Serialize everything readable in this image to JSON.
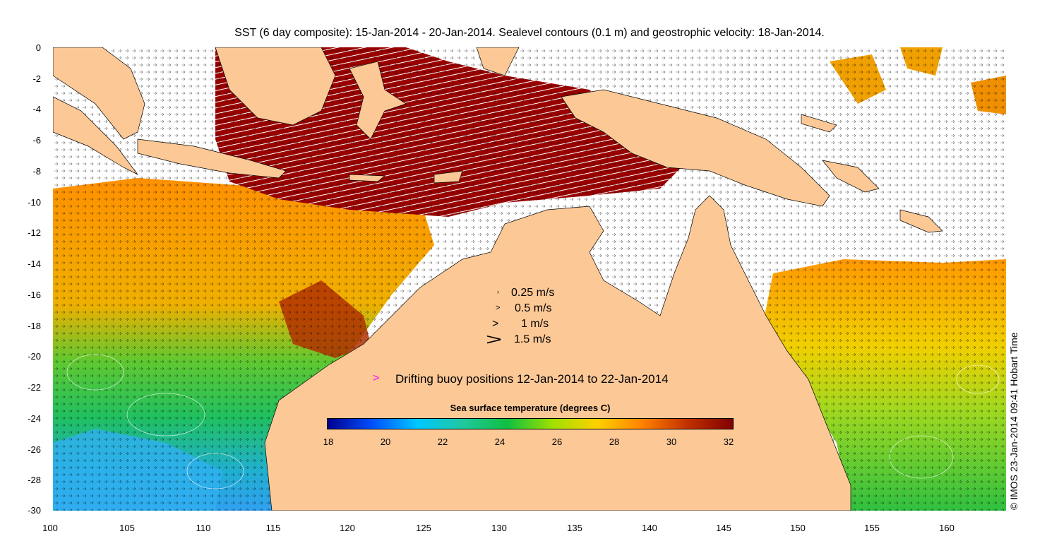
{
  "title": "SST (6 day composite): 15-Jan-2014 - 20-Jan-2014. Sealevel contours (0.1 m) and geostrophic velocity: 18-Jan-2014.",
  "credit": "© IMOS 23-Jan-2014 09:41 Hobart Time",
  "y_axis": {
    "ticks": [
      "0",
      "-2",
      "-4",
      "-6",
      "-8",
      "-10",
      "-12",
      "-14",
      "-16",
      "-18",
      "-20",
      "-22",
      "-24",
      "-26",
      "-28",
      "-30"
    ]
  },
  "x_axis": {
    "ticks": [
      "100",
      "105",
      "110",
      "115",
      "120",
      "125",
      "130",
      "135",
      "140",
      "145",
      "150",
      "155",
      "160"
    ]
  },
  "velocity_legend": [
    {
      "label": "0.25 m/s",
      "glyph": "›"
    },
    {
      "label": "0.5 m/s",
      "glyph": ">"
    },
    {
      "label": "1 m/s",
      "glyph": ">"
    },
    {
      "label": "1.5 m/s",
      "glyph": ">"
    }
  ],
  "buoy_legend": {
    "marker": ">",
    "label": "Drifting buoy positions 12-Jan-2014 to 22-Jan-2014",
    "color": "#ff00ff"
  },
  "colorbar": {
    "title": "Sea surface temperature (degrees C)",
    "ticks": [
      "18",
      "20",
      "22",
      "24",
      "26",
      "28",
      "30",
      "32"
    ],
    "colors": [
      "#00008f",
      "#0050ff",
      "#00c8ff",
      "#20c8a0",
      "#10c040",
      "#a0e000",
      "#ffd000",
      "#ff8000",
      "#c03000",
      "#800000"
    ]
  },
  "colors": {
    "land": "#fcc896",
    "sst_warm_north": "#990000",
    "sst_orange": "#f0a000",
    "sst_green": "#30c040",
    "sst_cyan": "#20b0e0"
  }
}
